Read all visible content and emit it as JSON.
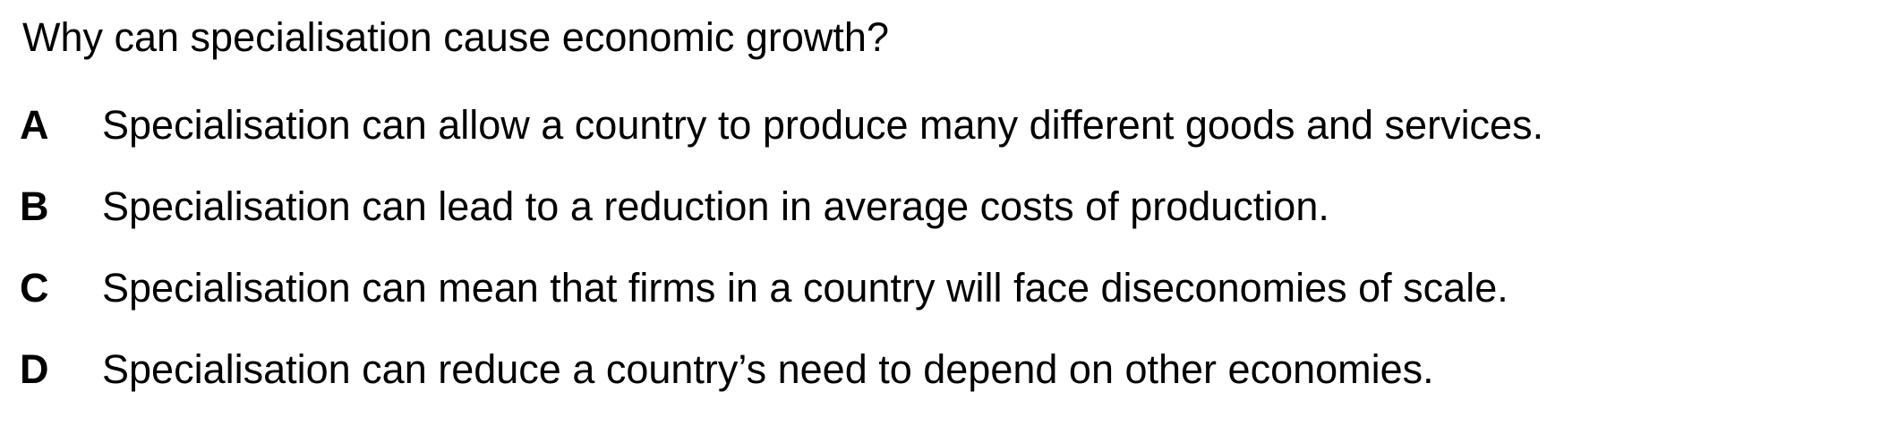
{
  "question": {
    "text": "Why can specialisation cause economic growth?"
  },
  "options": [
    {
      "letter": "A",
      "text": "Specialisation can allow a country to produce many different goods and services."
    },
    {
      "letter": "B",
      "text": "Specialisation can lead to a reduction in average costs of production."
    },
    {
      "letter": "C",
      "text": "Specialisation can mean that firms in a country will face diseconomies of scale."
    },
    {
      "letter": "D",
      "text": "Specialisation can reduce a country’s need to depend on other economies."
    }
  ]
}
